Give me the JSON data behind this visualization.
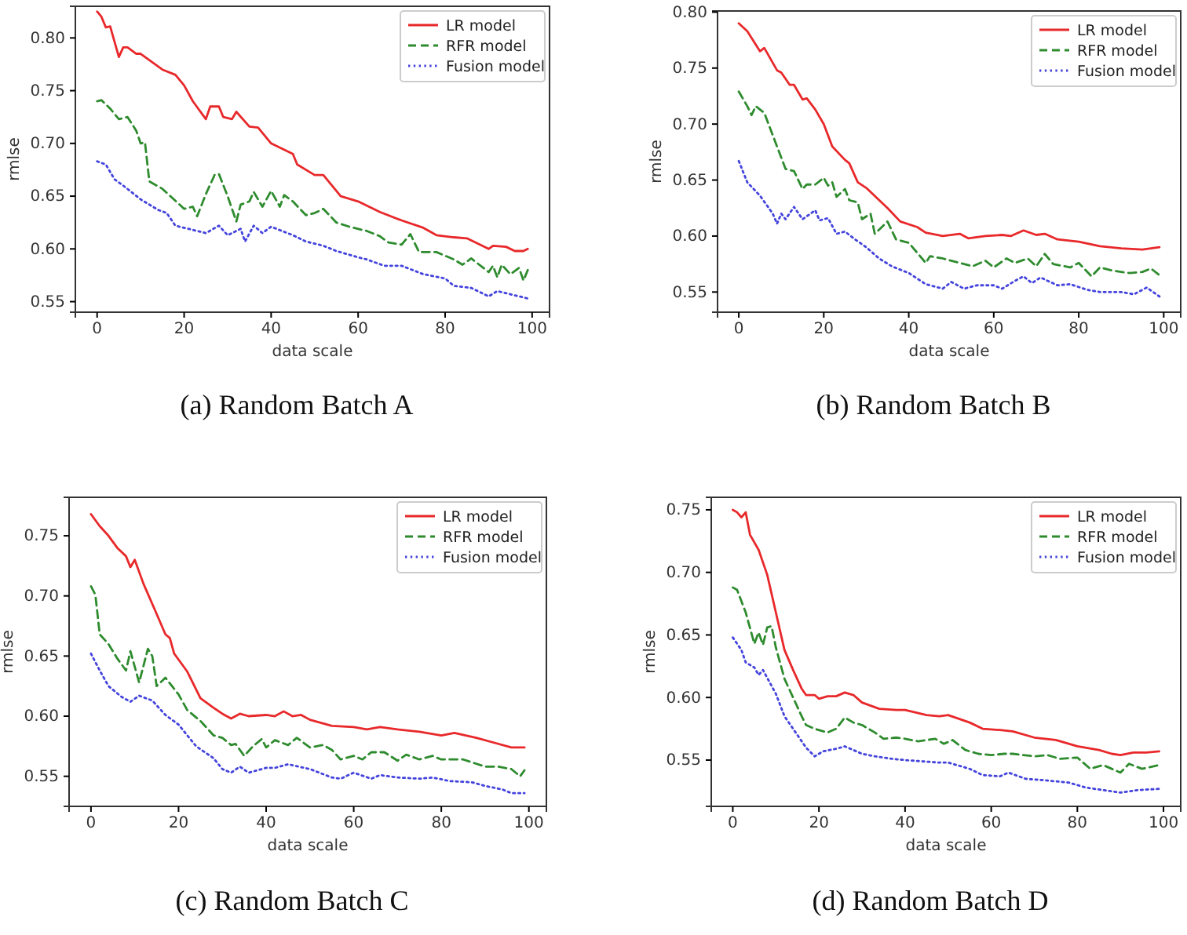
{
  "chart_data": [
    {
      "type": "line",
      "title": "(a) Random Batch A",
      "xlabel": "data scale",
      "ylabel": "rmlse",
      "xlim": [
        -5,
        104
      ],
      "xticks": [
        0,
        20,
        40,
        60,
        80,
        100
      ],
      "ylim": [
        0.54,
        0.83
      ],
      "yticks": [
        {
          "value": 0.55,
          "label": "0.55"
        },
        {
          "value": 0.6,
          "label": "0.60"
        },
        {
          "value": 0.65,
          "label": "0.65"
        },
        {
          "value": 0.7,
          "label": "0.70"
        },
        {
          "value": 0.75,
          "label": "0.75"
        },
        {
          "value": 0.8,
          "label": "0.80"
        }
      ],
      "grid": false,
      "legend": "top right",
      "series": [
        {
          "name": "LR model",
          "color": "#e8282a",
          "line_style": "solid",
          "x": [
            0,
            1,
            2,
            3,
            5,
            6,
            7,
            9,
            10,
            15,
            18,
            20,
            22,
            25,
            26,
            28,
            29,
            31,
            32,
            35,
            37,
            40,
            45,
            46,
            50,
            52,
            56,
            60,
            65,
            70,
            75,
            78,
            82,
            85,
            90,
            91,
            94,
            96,
            98,
            99
          ],
          "values": [
            0.825,
            0.82,
            0.81,
            0.811,
            0.782,
            0.791,
            0.791,
            0.785,
            0.785,
            0.77,
            0.765,
            0.755,
            0.74,
            0.723,
            0.735,
            0.735,
            0.725,
            0.723,
            0.73,
            0.716,
            0.715,
            0.7,
            0.69,
            0.68,
            0.67,
            0.67,
            0.65,
            0.645,
            0.635,
            0.627,
            0.62,
            0.613,
            0.611,
            0.61,
            0.6,
            0.603,
            0.602,
            0.598,
            0.598,
            0.6
          ]
        },
        {
          "name": "RFR model",
          "color": "#2e8b2e",
          "line_style": "dashed",
          "x": [
            0,
            1,
            3,
            5,
            7,
            9,
            10,
            11,
            12,
            15,
            20,
            22,
            23,
            25,
            27,
            28,
            30,
            32,
            33,
            35,
            36,
            38,
            40,
            42,
            43,
            45,
            48,
            50,
            52,
            55,
            58,
            62,
            65,
            67,
            70,
            72,
            74,
            78,
            82,
            84,
            86,
            90,
            91,
            92,
            93,
            95,
            97,
            98,
            99
          ],
          "values": [
            0.74,
            0.741,
            0.733,
            0.723,
            0.725,
            0.712,
            0.7,
            0.701,
            0.664,
            0.657,
            0.638,
            0.64,
            0.631,
            0.652,
            0.67,
            0.671,
            0.65,
            0.626,
            0.642,
            0.645,
            0.654,
            0.64,
            0.655,
            0.64,
            0.651,
            0.645,
            0.632,
            0.634,
            0.638,
            0.625,
            0.621,
            0.617,
            0.612,
            0.606,
            0.604,
            0.614,
            0.597,
            0.597,
            0.59,
            0.585,
            0.591,
            0.578,
            0.584,
            0.573,
            0.585,
            0.576,
            0.582,
            0.57,
            0.58
          ]
        },
        {
          "name": "Fusion model",
          "color": "#4444dd",
          "line_style": "dotted",
          "x": [
            0,
            2,
            4,
            6,
            10,
            14,
            16,
            18,
            22,
            25,
            28,
            30,
            33,
            34,
            36,
            38,
            40,
            45,
            48,
            52,
            55,
            60,
            62,
            66,
            70,
            75,
            80,
            82,
            86,
            90,
            92,
            95,
            99
          ],
          "values": [
            0.683,
            0.68,
            0.666,
            0.66,
            0.647,
            0.637,
            0.634,
            0.622,
            0.618,
            0.615,
            0.622,
            0.613,
            0.619,
            0.607,
            0.622,
            0.615,
            0.621,
            0.613,
            0.607,
            0.603,
            0.598,
            0.592,
            0.59,
            0.584,
            0.584,
            0.576,
            0.572,
            0.565,
            0.563,
            0.555,
            0.56,
            0.557,
            0.553
          ]
        }
      ]
    },
    {
      "type": "line",
      "title": "(b) Random Batch B",
      "xlabel": "data scale",
      "ylabel": "rmlse",
      "xlim": [
        -5,
        104
      ],
      "xticks": [
        0,
        20,
        40,
        60,
        80,
        100
      ],
      "ylim": [
        0.532,
        0.801
      ],
      "yticks": [
        {
          "value": 0.55,
          "label": "0.55"
        },
        {
          "value": 0.6,
          "label": "0.60"
        },
        {
          "value": 0.65,
          "label": "0.65"
        },
        {
          "value": 0.7,
          "label": "0.70"
        },
        {
          "value": 0.75,
          "label": "0.75"
        },
        {
          "value": 0.8,
          "label": "0.80"
        }
      ],
      "grid": false,
      "legend": "top right",
      "series": [
        {
          "name": "LR model",
          "color": "#e8282a",
          "line_style": "solid",
          "x": [
            0,
            2,
            5,
            6,
            9,
            10,
            12,
            13,
            15,
            16,
            18,
            20,
            22,
            25,
            26,
            28,
            30,
            35,
            38,
            42,
            44,
            48,
            52,
            54,
            58,
            62,
            64,
            67,
            70,
            72,
            75,
            80,
            85,
            90,
            95,
            99
          ],
          "values": [
            0.79,
            0.783,
            0.765,
            0.768,
            0.748,
            0.746,
            0.735,
            0.735,
            0.722,
            0.723,
            0.713,
            0.7,
            0.68,
            0.668,
            0.665,
            0.648,
            0.643,
            0.625,
            0.613,
            0.608,
            0.603,
            0.6,
            0.602,
            0.598,
            0.6,
            0.601,
            0.6,
            0.605,
            0.601,
            0.602,
            0.597,
            0.595,
            0.591,
            0.589,
            0.588,
            0.59
          ]
        },
        {
          "name": "RFR model",
          "color": "#2e8b2e",
          "line_style": "dashed",
          "x": [
            0,
            2,
            3,
            4,
            6,
            8,
            10,
            11,
            13,
            15,
            16,
            18,
            20,
            21,
            22,
            23,
            25,
            26,
            28,
            29,
            31,
            32,
            35,
            37,
            40,
            42,
            44,
            45,
            48,
            52,
            55,
            58,
            60,
            63,
            65,
            68,
            70,
            72,
            74,
            78,
            80,
            83,
            85,
            88,
            92,
            95,
            97,
            99
          ],
          "values": [
            0.729,
            0.716,
            0.708,
            0.716,
            0.71,
            0.69,
            0.67,
            0.66,
            0.658,
            0.642,
            0.646,
            0.646,
            0.652,
            0.645,
            0.648,
            0.635,
            0.642,
            0.632,
            0.63,
            0.615,
            0.62,
            0.602,
            0.613,
            0.597,
            0.594,
            0.585,
            0.576,
            0.582,
            0.58,
            0.576,
            0.573,
            0.578,
            0.572,
            0.58,
            0.576,
            0.58,
            0.573,
            0.584,
            0.575,
            0.572,
            0.576,
            0.564,
            0.572,
            0.569,
            0.567,
            0.568,
            0.571,
            0.565
          ]
        },
        {
          "name": "Fusion model",
          "color": "#4444dd",
          "line_style": "dotted",
          "x": [
            0,
            2,
            5,
            8,
            9,
            10,
            11,
            13,
            15,
            18,
            19,
            21,
            23,
            25,
            27,
            30,
            33,
            36,
            40,
            44,
            48,
            50,
            53,
            56,
            60,
            62,
            65,
            67,
            69,
            71,
            75,
            78,
            82,
            85,
            90,
            93,
            96,
            99
          ],
          "values": [
            0.667,
            0.648,
            0.636,
            0.62,
            0.611,
            0.62,
            0.615,
            0.626,
            0.615,
            0.623,
            0.614,
            0.616,
            0.602,
            0.604,
            0.598,
            0.59,
            0.58,
            0.573,
            0.567,
            0.557,
            0.553,
            0.559,
            0.553,
            0.556,
            0.556,
            0.553,
            0.56,
            0.564,
            0.558,
            0.563,
            0.556,
            0.557,
            0.552,
            0.55,
            0.55,
            0.548,
            0.554,
            0.546
          ]
        }
      ]
    },
    {
      "type": "line",
      "title": "(c) Random Batch C",
      "xlabel": "data scale",
      "ylabel": "rmlse",
      "xlim": [
        -5,
        104
      ],
      "xticks": [
        0,
        20,
        40,
        60,
        80,
        100
      ],
      "ylim": [
        0.525,
        0.782
      ],
      "yticks": [
        {
          "value": 0.55,
          "label": "0.55"
        },
        {
          "value": 0.6,
          "label": "0.60"
        },
        {
          "value": 0.65,
          "label": "0.65"
        },
        {
          "value": 0.7,
          "label": "0.70"
        },
        {
          "value": 0.75,
          "label": "0.75"
        }
      ],
      "grid": false,
      "legend": "top right",
      "series": [
        {
          "name": "LR model",
          "color": "#e8282a",
          "line_style": "solid",
          "x": [
            0,
            2,
            4,
            6,
            8,
            9,
            10,
            12,
            15,
            17,
            18,
            19,
            22,
            25,
            28,
            30,
            32,
            34,
            36,
            40,
            42,
            44,
            46,
            48,
            50,
            55,
            60,
            63,
            66,
            70,
            75,
            80,
            83,
            88,
            92,
            96,
            99
          ],
          "values": [
            0.768,
            0.758,
            0.75,
            0.74,
            0.733,
            0.724,
            0.73,
            0.71,
            0.685,
            0.668,
            0.665,
            0.652,
            0.637,
            0.615,
            0.607,
            0.602,
            0.598,
            0.602,
            0.6,
            0.601,
            0.6,
            0.604,
            0.6,
            0.601,
            0.597,
            0.592,
            0.591,
            0.589,
            0.591,
            0.589,
            0.587,
            0.584,
            0.586,
            0.582,
            0.578,
            0.574,
            0.574
          ]
        },
        {
          "name": "RFR model",
          "color": "#2e8b2e",
          "line_style": "dashed",
          "x": [
            0,
            1,
            2,
            4,
            6,
            8,
            9,
            11,
            13,
            14,
            15,
            17,
            20,
            22,
            25,
            26,
            28,
            30,
            32,
            33,
            35,
            37,
            39,
            40,
            42,
            45,
            47,
            50,
            53,
            55,
            57,
            60,
            62,
            64,
            67,
            70,
            72,
            75,
            78,
            80,
            85,
            90,
            93,
            96,
            98,
            99
          ],
          "values": [
            0.708,
            0.701,
            0.668,
            0.66,
            0.648,
            0.638,
            0.654,
            0.628,
            0.656,
            0.65,
            0.625,
            0.632,
            0.618,
            0.605,
            0.596,
            0.592,
            0.584,
            0.582,
            0.576,
            0.577,
            0.567,
            0.575,
            0.581,
            0.574,
            0.58,
            0.576,
            0.582,
            0.574,
            0.576,
            0.572,
            0.564,
            0.567,
            0.564,
            0.57,
            0.57,
            0.563,
            0.568,
            0.564,
            0.567,
            0.564,
            0.564,
            0.558,
            0.558,
            0.556,
            0.55,
            0.555
          ]
        },
        {
          "name": "Fusion model",
          "color": "#4444dd",
          "line_style": "dotted",
          "x": [
            0,
            2,
            4,
            7,
            9,
            11,
            14,
            17,
            20,
            24,
            28,
            30,
            32,
            34,
            36,
            40,
            42,
            45,
            50,
            55,
            57,
            60,
            64,
            66,
            70,
            75,
            78,
            82,
            87,
            90,
            94,
            96,
            99
          ],
          "values": [
            0.652,
            0.638,
            0.625,
            0.616,
            0.612,
            0.617,
            0.613,
            0.601,
            0.593,
            0.575,
            0.565,
            0.556,
            0.553,
            0.558,
            0.553,
            0.557,
            0.557,
            0.56,
            0.556,
            0.549,
            0.548,
            0.553,
            0.548,
            0.551,
            0.549,
            0.548,
            0.549,
            0.546,
            0.545,
            0.542,
            0.539,
            0.536,
            0.536
          ]
        }
      ]
    },
    {
      "type": "line",
      "title": "(d) Random Batch D",
      "xlabel": "data scale",
      "ylabel": "rmlse",
      "xlim": [
        -5,
        104
      ],
      "xticks": [
        0,
        20,
        40,
        60,
        80,
        100
      ],
      "ylim": [
        0.513,
        0.76
      ],
      "yticks": [
        {
          "value": 0.55,
          "label": "0.55"
        },
        {
          "value": 0.6,
          "label": "0.60"
        },
        {
          "value": 0.65,
          "label": "0.65"
        },
        {
          "value": 0.7,
          "label": "0.70"
        },
        {
          "value": 0.75,
          "label": "0.75"
        }
      ],
      "grid": false,
      "legend": "top right",
      "series": [
        {
          "name": "LR model",
          "color": "#e8282a",
          "line_style": "solid",
          "x": [
            0,
            1,
            2,
            3,
            4,
            6,
            8,
            10,
            12,
            14,
            16,
            17,
            19,
            20,
            22,
            24,
            26,
            28,
            30,
            34,
            38,
            40,
            45,
            48,
            50,
            55,
            58,
            62,
            65,
            70,
            75,
            80,
            85,
            88,
            90,
            93,
            96,
            99
          ],
          "values": [
            0.75,
            0.748,
            0.744,
            0.748,
            0.73,
            0.718,
            0.698,
            0.668,
            0.638,
            0.622,
            0.607,
            0.602,
            0.602,
            0.599,
            0.601,
            0.601,
            0.604,
            0.602,
            0.596,
            0.591,
            0.59,
            0.59,
            0.586,
            0.585,
            0.586,
            0.58,
            0.575,
            0.574,
            0.573,
            0.568,
            0.566,
            0.561,
            0.558,
            0.555,
            0.554,
            0.556,
            0.556,
            0.557
          ]
        },
        {
          "name": "RFR model",
          "color": "#2e8b2e",
          "line_style": "dashed",
          "x": [
            0,
            1,
            3,
            5,
            6,
            7,
            8,
            9,
            10,
            12,
            14,
            16,
            17,
            19,
            22,
            24,
            26,
            28,
            30,
            33,
            35,
            38,
            40,
            43,
            47,
            49,
            51,
            54,
            57,
            60,
            63,
            65,
            70,
            73,
            76,
            80,
            83,
            86,
            90,
            92,
            95,
            99
          ],
          "values": [
            0.688,
            0.686,
            0.668,
            0.643,
            0.652,
            0.642,
            0.656,
            0.657,
            0.64,
            0.615,
            0.6,
            0.585,
            0.578,
            0.575,
            0.572,
            0.575,
            0.584,
            0.58,
            0.578,
            0.572,
            0.567,
            0.568,
            0.567,
            0.565,
            0.567,
            0.563,
            0.566,
            0.558,
            0.555,
            0.554,
            0.555,
            0.555,
            0.553,
            0.554,
            0.551,
            0.552,
            0.543,
            0.546,
            0.54,
            0.547,
            0.543,
            0.546
          ]
        },
        {
          "name": "Fusion model",
          "color": "#4444dd",
          "line_style": "dotted",
          "x": [
            0,
            2,
            3,
            5,
            6,
            7,
            10,
            12,
            15,
            17,
            19,
            21,
            24,
            26,
            30,
            33,
            37,
            40,
            44,
            48,
            50,
            55,
            58,
            62,
            64,
            68,
            72,
            78,
            82,
            86,
            90,
            94,
            99
          ],
          "values": [
            0.648,
            0.638,
            0.628,
            0.624,
            0.618,
            0.622,
            0.603,
            0.585,
            0.57,
            0.56,
            0.553,
            0.557,
            0.559,
            0.561,
            0.555,
            0.553,
            0.551,
            0.55,
            0.549,
            0.548,
            0.548,
            0.543,
            0.538,
            0.537,
            0.54,
            0.535,
            0.534,
            0.532,
            0.528,
            0.526,
            0.524,
            0.526,
            0.527
          ]
        }
      ]
    }
  ]
}
